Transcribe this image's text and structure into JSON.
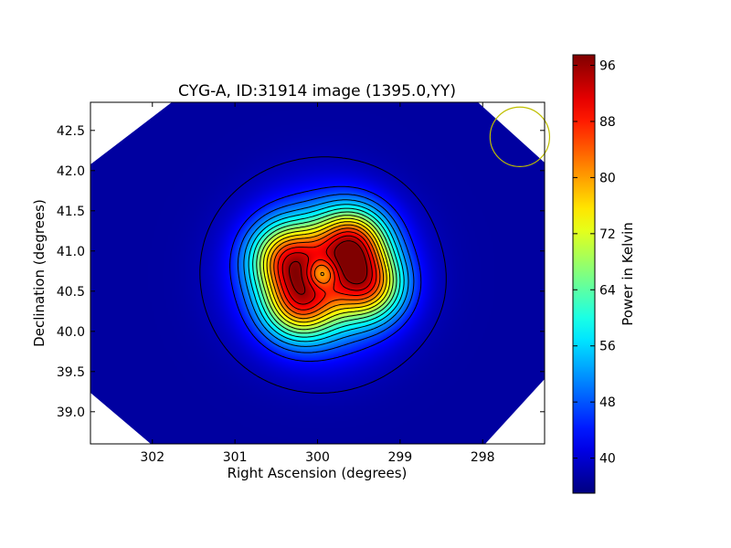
{
  "chart_data": {
    "type": "heatmap",
    "title": "CYG-A, ID:31914 image (1395.0,YY)",
    "xlabel": "Right Ascension (degrees)",
    "ylabel": "Declination (degrees)",
    "xlim": [
      302.75,
      297.25
    ],
    "ylim": [
      38.6,
      42.85
    ],
    "x_ticks": [
      302,
      301,
      300,
      299,
      298
    ],
    "y_ticks": [
      39.0,
      39.5,
      40.0,
      40.5,
      41.0,
      41.5,
      42.0,
      42.5
    ],
    "x_tick_labels": [
      "302",
      "301",
      "300",
      "299",
      "298"
    ],
    "y_tick_labels": [
      "39.0",
      "39.5",
      "40.0",
      "40.5",
      "41.0",
      "41.5",
      "42.0",
      "42.5"
    ],
    "colorbar": {
      "label": "Power in Kelvin",
      "range": [
        35,
        97.5
      ],
      "ticks": [
        40,
        48,
        56,
        64,
        72,
        80,
        88,
        96
      ],
      "tick_labels": [
        "40",
        "48",
        "56",
        "64",
        "72",
        "80",
        "88",
        "96"
      ],
      "colormap": "jet"
    },
    "background_level": 37,
    "sources": [
      {
        "ra": 299.58,
        "dec": 41.12,
        "peak": 97
      },
      {
        "ra": 300.38,
        "dec": 40.92,
        "peak": 93
      },
      {
        "ra": 300.22,
        "dec": 40.33,
        "peak": 92
      },
      {
        "ra": 299.38,
        "dec": 40.57,
        "peak": 93
      },
      {
        "ra": 299.95,
        "dec": 40.72,
        "peak": 52
      }
    ],
    "beam_marker": {
      "ra": 297.55,
      "dec": 42.42,
      "radius_deg": 0.37,
      "color": "#bfbf00"
    }
  }
}
